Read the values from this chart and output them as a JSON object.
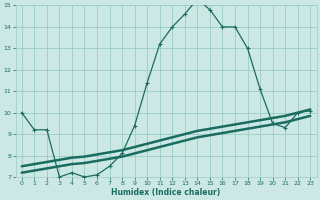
{
  "xlabel": "Humidex (Indice chaleur)",
  "bg_color": "#cce8e4",
  "grid_color": "#9dccc6",
  "line_color": "#1a6b60",
  "xlim": [
    -0.5,
    23.5
  ],
  "ylim": [
    7,
    15
  ],
  "xticks": [
    0,
    1,
    2,
    3,
    4,
    5,
    6,
    7,
    8,
    9,
    10,
    11,
    12,
    13,
    14,
    15,
    16,
    17,
    18,
    19,
    20,
    21,
    22,
    23
  ],
  "yticks": [
    7,
    8,
    9,
    10,
    11,
    12,
    13,
    14,
    15
  ],
  "main_x": [
    0,
    1,
    2,
    3,
    4,
    5,
    6,
    7,
    8,
    9,
    10,
    11,
    12,
    13,
    14,
    15,
    16,
    17,
    18,
    19,
    20,
    21,
    22,
    23
  ],
  "main_y": [
    10.0,
    9.2,
    9.2,
    7.0,
    7.2,
    7.0,
    7.1,
    7.5,
    8.1,
    9.4,
    11.4,
    13.2,
    14.0,
    14.6,
    15.3,
    14.8,
    14.0,
    14.0,
    13.0,
    11.1,
    9.5,
    9.3,
    10.0,
    10.1
  ],
  "line2_x": [
    0,
    1,
    2,
    3,
    4,
    5,
    6,
    7,
    8,
    9,
    10,
    11,
    12,
    13,
    14,
    15,
    16,
    17,
    18,
    19,
    20,
    21,
    22,
    23
  ],
  "line2_y": [
    7.2,
    7.3,
    7.4,
    7.5,
    7.6,
    7.65,
    7.75,
    7.85,
    7.95,
    8.1,
    8.25,
    8.4,
    8.55,
    8.7,
    8.85,
    8.95,
    9.05,
    9.15,
    9.25,
    9.35,
    9.45,
    9.55,
    9.7,
    9.85
  ],
  "line3_x": [
    0,
    1,
    2,
    3,
    4,
    5,
    6,
    7,
    8,
    9,
    10,
    11,
    12,
    13,
    14,
    15,
    16,
    17,
    18,
    19,
    20,
    21,
    22,
    23
  ],
  "line3_y": [
    7.5,
    7.6,
    7.7,
    7.8,
    7.9,
    7.95,
    8.05,
    8.15,
    8.25,
    8.4,
    8.55,
    8.7,
    8.85,
    9.0,
    9.15,
    9.25,
    9.35,
    9.45,
    9.55,
    9.65,
    9.75,
    9.85,
    10.0,
    10.15
  ]
}
